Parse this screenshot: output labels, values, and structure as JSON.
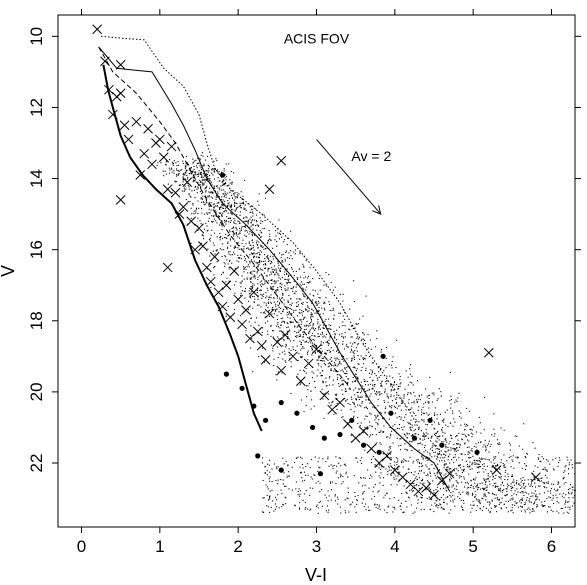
{
  "chart_data": {
    "type": "scatter",
    "title": "",
    "xlabel": "V-I",
    "ylabel": "V",
    "xlim": [
      -0.3,
      6.3
    ],
    "ylim": [
      23.8,
      9.4
    ],
    "x_ticks": [
      0,
      1,
      2,
      3,
      4,
      5,
      6
    ],
    "y_ticks": [
      10,
      12,
      14,
      16,
      18,
      20,
      22
    ],
    "grid": false,
    "annotations": [
      {
        "text": "ACIS FOV",
        "x": 3.0,
        "y": 10.2
      },
      {
        "text": "Av = 2",
        "x": 3.7,
        "y": 13.5
      }
    ],
    "reddening_vector": {
      "label": "Av = 2",
      "from": [
        3.0,
        12.9
      ],
      "to": [
        3.82,
        15.0
      ]
    },
    "curves": [
      {
        "style": "solid-thick",
        "points": [
          [
            0.28,
            10.8
          ],
          [
            0.34,
            11.5
          ],
          [
            0.4,
            12.0
          ],
          [
            0.5,
            12.8
          ],
          [
            0.62,
            13.4
          ],
          [
            0.78,
            13.9
          ],
          [
            0.95,
            14.3
          ],
          [
            1.15,
            14.7
          ],
          [
            1.3,
            15.3
          ],
          [
            1.45,
            16.3
          ],
          [
            1.6,
            17.0
          ],
          [
            1.75,
            17.6
          ],
          [
            1.9,
            18.4
          ],
          [
            2.0,
            19.0
          ],
          [
            2.1,
            19.8
          ],
          [
            2.2,
            20.6
          ],
          [
            2.3,
            21.1
          ]
        ]
      },
      {
        "style": "solid-thin",
        "points": [
          [
            0.22,
            10.3
          ],
          [
            0.45,
            10.9
          ],
          [
            0.9,
            11.0
          ],
          [
            1.15,
            11.9
          ],
          [
            1.3,
            12.5
          ],
          [
            1.45,
            13.2
          ],
          [
            1.6,
            14.0
          ],
          [
            1.8,
            14.7
          ],
          [
            2.1,
            15.3
          ],
          [
            2.4,
            16.0
          ],
          [
            2.7,
            16.8
          ],
          [
            2.95,
            17.5
          ],
          [
            3.15,
            18.3
          ],
          [
            3.3,
            18.9
          ],
          [
            3.5,
            19.6
          ],
          [
            3.7,
            20.3
          ],
          [
            3.95,
            21.0
          ],
          [
            4.25,
            21.6
          ],
          [
            4.5,
            22.0
          ],
          [
            4.7,
            22.8
          ]
        ]
      },
      {
        "style": "dashed",
        "points": [
          [
            0.22,
            10.3
          ],
          [
            0.4,
            11.0
          ],
          [
            0.7,
            11.6
          ],
          [
            1.0,
            12.4
          ],
          [
            1.2,
            13.0
          ],
          [
            1.4,
            13.8
          ],
          [
            1.6,
            14.6
          ],
          [
            1.9,
            15.6
          ],
          [
            2.2,
            16.4
          ],
          [
            2.5,
            17.3
          ],
          [
            2.8,
            18.2
          ],
          [
            3.1,
            19.0
          ],
          [
            3.4,
            19.8
          ]
        ]
      },
      {
        "style": "dotted",
        "points": [
          [
            0.25,
            10.0
          ],
          [
            0.5,
            10.05
          ],
          [
            0.8,
            10.1
          ],
          [
            1.05,
            10.9
          ],
          [
            1.3,
            11.4
          ],
          [
            1.5,
            12.2
          ],
          [
            1.6,
            13.0
          ],
          [
            1.7,
            13.7
          ],
          [
            1.9,
            14.3
          ],
          [
            2.3,
            15.0
          ],
          [
            2.7,
            15.8
          ],
          [
            3.0,
            16.6
          ],
          [
            3.3,
            17.5
          ],
          [
            3.5,
            18.3
          ],
          [
            3.7,
            19.0
          ],
          [
            3.95,
            19.8
          ],
          [
            4.15,
            20.4
          ],
          [
            4.3,
            21.0
          ],
          [
            4.55,
            21.6
          ],
          [
            4.7,
            22.2
          ]
        ]
      }
    ],
    "series": [
      {
        "marker": "x",
        "values_x": [
          0.2,
          0.3,
          0.35,
          0.4,
          0.45,
          0.5,
          0.5,
          0.55,
          0.6,
          0.7,
          0.75,
          0.8,
          0.85,
          0.9,
          0.95,
          1.0,
          1.05,
          1.1,
          1.15,
          1.2,
          1.25,
          1.3,
          1.35,
          1.4,
          1.45,
          1.5,
          1.55,
          1.6,
          1.65,
          1.7,
          1.75,
          1.8,
          1.85,
          1.9,
          1.95,
          2.0,
          2.05,
          2.1,
          2.15,
          2.2,
          2.25,
          2.3,
          2.35,
          2.4,
          2.5,
          2.55,
          2.6,
          2.7,
          2.8,
          2.9,
          3.0,
          3.1,
          3.2,
          3.3,
          3.4,
          3.5,
          3.6,
          3.7,
          3.8,
          3.9,
          4.0,
          4.1,
          4.2,
          4.3,
          4.4,
          4.5,
          4.6,
          4.7,
          5.2,
          5.3,
          5.8,
          2.55,
          2.4,
          1.1,
          0.5
        ],
        "values_y": [
          9.8,
          10.7,
          11.5,
          12.2,
          11.7,
          11.6,
          10.8,
          12.5,
          12.9,
          12.4,
          13.9,
          13.3,
          12.6,
          13.6,
          13.0,
          12.9,
          13.4,
          14.3,
          13.1,
          14.4,
          15.0,
          14.8,
          14.1,
          15.2,
          16.0,
          15.4,
          15.9,
          16.5,
          16.9,
          16.2,
          17.2,
          17.6,
          17.0,
          17.9,
          16.6,
          17.4,
          18.1,
          17.7,
          18.5,
          17.2,
          18.3,
          18.7,
          19.1,
          17.8,
          18.6,
          19.4,
          18.4,
          19.0,
          19.7,
          19.2,
          18.8,
          20.1,
          20.5,
          20.3,
          20.9,
          21.3,
          21.1,
          21.6,
          22.0,
          21.8,
          22.2,
          22.4,
          22.6,
          22.8,
          22.7,
          22.9,
          22.5,
          22.3,
          18.9,
          22.2,
          22.4,
          13.5,
          14.3,
          16.5,
          14.6
        ]
      },
      {
        "marker": "filled-circle",
        "values_x": [
          1.8,
          1.85,
          2.05,
          2.2,
          2.35,
          2.55,
          2.75,
          2.95,
          3.1,
          3.3,
          3.45,
          3.6,
          3.8,
          3.95,
          4.25,
          4.45,
          4.6,
          5.05,
          3.85,
          2.55,
          2.25,
          3.05
        ],
        "values_y": [
          13.9,
          19.5,
          19.9,
          20.4,
          20.8,
          20.3,
          20.6,
          21.0,
          21.3,
          21.2,
          20.8,
          21.5,
          21.7,
          20.6,
          21.3,
          20.8,
          21.5,
          21.7,
          19.0,
          22.2,
          21.8,
          22.3
        ]
      }
    ]
  }
}
